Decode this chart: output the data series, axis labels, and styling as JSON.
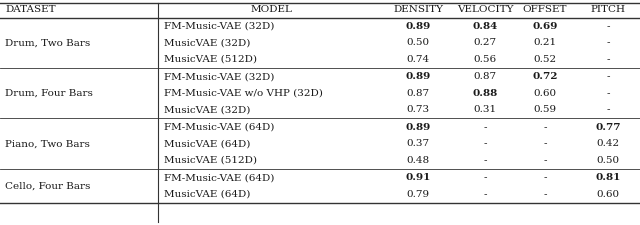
{
  "headers": [
    "DATASET",
    "MODEL",
    "DENSITY",
    "VELOCITY",
    "OFFSET",
    "PITCH"
  ],
  "sections": [
    {
      "dataset_sc": [
        "D",
        "rum, ",
        "T",
        "wo ",
        "B",
        "ars"
      ],
      "dataset_plain": "Drum, Two Bars",
      "rows": [
        {
          "model": "FM-Music-VAE (32D)",
          "density": "0.89",
          "velocity": "0.84",
          "offset": "0.69",
          "pitch": "-",
          "bold": [
            "density",
            "velocity",
            "offset"
          ]
        },
        {
          "model": "MusicVAE (32D)",
          "density": "0.50",
          "velocity": "0.27",
          "offset": "0.21",
          "pitch": "-",
          "bold": []
        },
        {
          "model": "MusicVAE (512D)",
          "density": "0.74",
          "velocity": "0.56",
          "offset": "0.52",
          "pitch": "-",
          "bold": []
        }
      ]
    },
    {
      "dataset_plain": "Drum, Four Bars",
      "rows": [
        {
          "model": "FM-Music-VAE (32D)",
          "density": "0.89",
          "velocity": "0.87",
          "offset": "0.72",
          "pitch": "-",
          "bold": [
            "density",
            "offset"
          ]
        },
        {
          "model": "FM-Music-VAE w/o VHP (32D)",
          "density": "0.87",
          "velocity": "0.88",
          "offset": "0.60",
          "pitch": "-",
          "bold": [
            "velocity"
          ]
        },
        {
          "model": "MusicVAE (32D)",
          "density": "0.73",
          "velocity": "0.31",
          "offset": "0.59",
          "pitch": "-",
          "bold": []
        }
      ]
    },
    {
      "dataset_plain": "Piano, Two Bars",
      "rows": [
        {
          "model": "FM-Music-VAE (64D)",
          "density": "0.89",
          "velocity": "-",
          "offset": "-",
          "pitch": "0.77",
          "bold": [
            "density",
            "pitch"
          ]
        },
        {
          "model": "MusicVAE (64D)",
          "density": "0.37",
          "velocity": "-",
          "offset": "-",
          "pitch": "0.42",
          "bold": []
        },
        {
          "model": "MusicVAE (512D)",
          "density": "0.48",
          "velocity": "-",
          "offset": "-",
          "pitch": "0.50",
          "bold": []
        }
      ]
    },
    {
      "dataset_plain": "Cello, Four Bars",
      "rows": [
        {
          "model": "FM-Music-VAE (64D)",
          "density": "0.91",
          "velocity": "-",
          "offset": "-",
          "pitch": "0.81",
          "bold": [
            "density",
            "pitch"
          ]
        },
        {
          "model": "MusicVAE (64D)",
          "density": "0.79",
          "velocity": "-",
          "offset": "-",
          "pitch": "0.60",
          "bold": []
        }
      ]
    }
  ],
  "fig_bg": "#ffffff",
  "text_color": "#1a1a1a",
  "line_color": "#333333",
  "font_size": 7.5,
  "header_font_size": 7.5
}
